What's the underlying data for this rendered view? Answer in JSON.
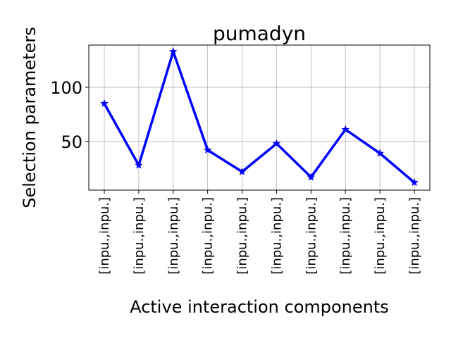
{
  "chart_data": {
    "type": "line",
    "title": "pumadyn",
    "xlabel": "Active interaction components",
    "ylabel": "Selection parameters",
    "categories": [
      "[inpu.,inpu.]",
      "[inpu.,inpu.]",
      "[inpu.,inpu.]",
      "[inpu.,inpu.]",
      "[inpu.,inpu.]",
      "[inpu.,inpu.]",
      "[inpu.,inpu.]",
      "[inpu.,inpu.]",
      "[inpu.,inpu.]",
      "[inpu.,inpu.]"
    ],
    "series": [
      {
        "values": [
          85,
          28,
          133,
          42,
          22,
          48,
          17,
          61,
          39,
          12
        ],
        "color": "#0000ff",
        "marker": "star"
      }
    ],
    "ylim": [
      5,
      139
    ],
    "yticks": [
      50,
      100
    ],
    "ytick_labels": [
      "50",
      "100"
    ],
    "grid": true,
    "legend": "none"
  }
}
